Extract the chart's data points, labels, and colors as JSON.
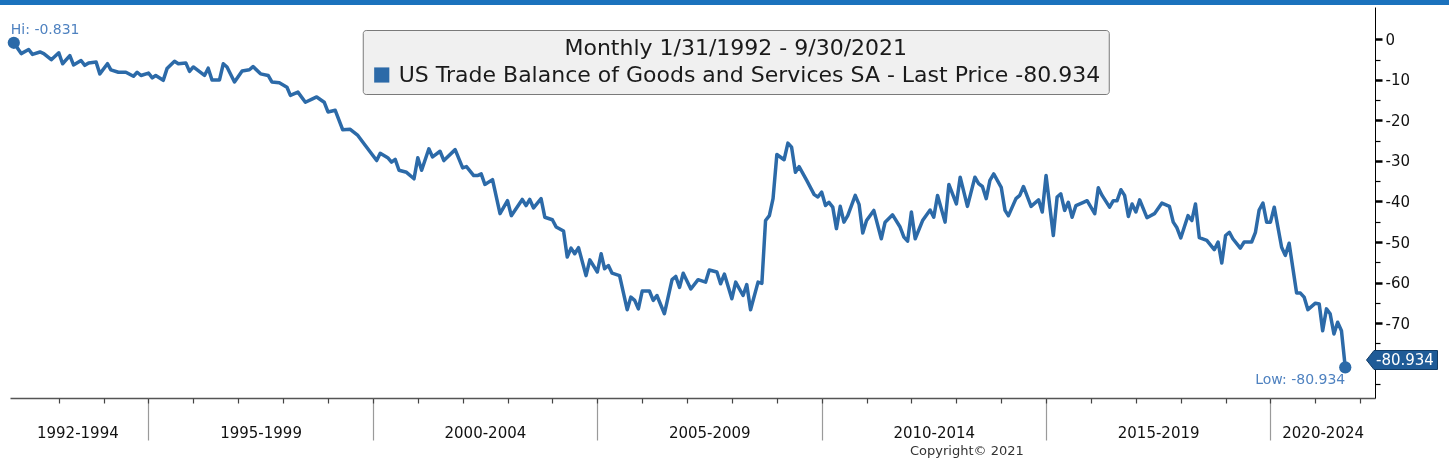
{
  "chart_data": {
    "type": "line",
    "legend_title": "Monthly 1/31/1992 - 9/30/2021",
    "legend": "top",
    "x": [
      "1992-01",
      "1992-03",
      "1992-05",
      "1992-06",
      "1992-08",
      "1992-09",
      "1992-11",
      "1993-01",
      "1993-02",
      "1993-04",
      "1993-05",
      "1993-07",
      "1993-08",
      "1993-09",
      "1993-11",
      "1993-12",
      "1994-02",
      "1994-03",
      "1994-05",
      "1994-07",
      "1994-09",
      "1994-10",
      "1994-11",
      "1995-01",
      "1995-02",
      "1995-03",
      "1995-05",
      "1995-06",
      "1995-08",
      "1995-09",
      "1995-11",
      "1995-12",
      "1996-01",
      "1996-04",
      "1996-05",
      "1996-06",
      "1996-08",
      "1996-09",
      "1996-10",
      "1996-12",
      "1997-02",
      "1997-04",
      "1997-05",
      "1997-07",
      "1997-09",
      "1997-10",
      "1997-12",
      "1998-02",
      "1998-03",
      "1998-05",
      "1998-07",
      "1998-09",
      "1998-10",
      "1998-12",
      "1999-01",
      "1999-03",
      "1999-05",
      "1999-07",
      "1999-09",
      "1999-11",
      "2000-02",
      "2000-03",
      "2000-05",
      "2000-06",
      "2000-07",
      "2000-08",
      "2000-10",
      "2000-12",
      "2001-01",
      "2001-02",
      "2001-04",
      "2001-05",
      "2001-07",
      "2001-08",
      "2001-11",
      "2002-01",
      "2002-02",
      "2002-04",
      "2002-05",
      "2002-06",
      "2002-07",
      "2002-09",
      "2002-11",
      "2003-01",
      "2003-02",
      "2003-05",
      "2003-06",
      "2003-07",
      "2003-08",
      "2003-10",
      "2003-11",
      "2004-01",
      "2004-02",
      "2004-04",
      "2004-05",
      "2004-06",
      "2004-07",
      "2004-08",
      "2004-10",
      "2004-11",
      "2005-01",
      "2005-02",
      "2005-03",
      "2005-04",
      "2005-05",
      "2005-07",
      "2005-09",
      "2005-10",
      "2005-11",
      "2005-12",
      "2006-01",
      "2006-03",
      "2006-04",
      "2006-05",
      "2006-07",
      "2006-09",
      "2006-10",
      "2006-11",
      "2006-12",
      "2007-02",
      "2007-04",
      "2007-06",
      "2007-07",
      "2007-09",
      "2007-10",
      "2007-11",
      "2008-01",
      "2008-02",
      "2008-04",
      "2008-05",
      "2008-06",
      "2008-08",
      "2008-09",
      "2008-10",
      "2008-11",
      "2008-12",
      "2009-01",
      "2009-03",
      "2009-04",
      "2009-05",
      "2009-06",
      "2009-07",
      "2009-09",
      "2009-11",
      "2009-12",
      "2010-01",
      "2010-02",
      "2010-03",
      "2010-04",
      "2010-05",
      "2010-06",
      "2010-07",
      "2010-08",
      "2010-10",
      "2010-11",
      "2010-12",
      "2011-01",
      "2011-03",
      "2011-05",
      "2011-06",
      "2011-08",
      "2011-10",
      "2011-11",
      "2011-12",
      "2012-01",
      "2012-02",
      "2012-04",
      "2012-06",
      "2012-07",
      "2012-08",
      "2012-10",
      "2012-11",
      "2013-01",
      "2013-02",
      "2013-04",
      "2013-06",
      "2013-07",
      "2013-08",
      "2013-09",
      "2013-10",
      "2013-11",
      "2014-01",
      "2014-02",
      "2014-03",
      "2014-05",
      "2014-06",
      "2014-07",
      "2014-09",
      "2014-11",
      "2014-12",
      "2015-01",
      "2015-03",
      "2015-04",
      "2015-05",
      "2015-06",
      "2015-07",
      "2015-08",
      "2015-09",
      "2015-11",
      "2015-12",
      "2016-02",
      "2016-03",
      "2016-04",
      "2016-06",
      "2016-07",
      "2016-08",
      "2016-09",
      "2016-10",
      "2016-11",
      "2016-12",
      "2017-01",
      "2017-02",
      "2017-04",
      "2017-06",
      "2017-08",
      "2017-10",
      "2017-11",
      "2017-12",
      "2018-01",
      "2018-03",
      "2018-04",
      "2018-05",
      "2018-06",
      "2018-08",
      "2018-10",
      "2018-11",
      "2018-12",
      "2019-01",
      "2019-02",
      "2019-03",
      "2019-05",
      "2019-06",
      "2019-08",
      "2019-09",
      "2019-10",
      "2019-11",
      "2019-12",
      "2020-01",
      "2020-02",
      "2020-04",
      "2020-05",
      "2020-06",
      "2020-08",
      "2020-09",
      "2020-10",
      "2020-11",
      "2021-01",
      "2021-02",
      "2021-03",
      "2021-04",
      "2021-05",
      "2021-06",
      "2021-07",
      "2021-08",
      "2021-09"
    ],
    "series": [
      {
        "name": "US Trade Balance of Goods and Services SA - Last Price -80.934",
        "color": "#2c6aa8",
        "values": [
          -0.831,
          -3.5,
          -2.5,
          -3.7,
          -3.1,
          -3.5,
          -5.0,
          -3.3,
          -6.0,
          -4.0,
          -6.3,
          -5.2,
          -6.4,
          -5.8,
          -5.6,
          -8.5,
          -6.0,
          -7.5,
          -8.1,
          -8.1,
          -9.1,
          -8.1,
          -8.9,
          -8.3,
          -9.5,
          -8.9,
          -10.1,
          -7.2,
          -5.4,
          -6.0,
          -5.8,
          -7.9,
          -6.8,
          -8.9,
          -7.1,
          -10.0,
          -10.0,
          -6.0,
          -6.8,
          -10.5,
          -7.8,
          -7.5,
          -6.7,
          -8.5,
          -8.9,
          -10.5,
          -10.7,
          -11.8,
          -13.8,
          -13.0,
          -15.5,
          -14.6,
          -14.2,
          -15.5,
          -17.9,
          -17.5,
          -22.3,
          -22.2,
          -23.7,
          -26.2,
          -29.9,
          -28.1,
          -29.2,
          -30.3,
          -29.6,
          -32.3,
          -32.8,
          -34.4,
          -29.2,
          -32.3,
          -27.0,
          -29.0,
          -27.6,
          -29.9,
          -27.2,
          -31.7,
          -31.4,
          -33.6,
          -33.6,
          -33.2,
          -35.8,
          -34.6,
          -43.0,
          -39.8,
          -43.5,
          -39.5,
          -41.0,
          -39.5,
          -41.6,
          -39.3,
          -43.9,
          -44.5,
          -46.3,
          -47.3,
          -53.7,
          -51.5,
          -52.9,
          -51.4,
          -58.3,
          -54.4,
          -57.4,
          -52.9,
          -56.6,
          -55.8,
          -57.7,
          -58.3,
          -66.7,
          -63.6,
          -64.4,
          -66.5,
          -62.1,
          -62.1,
          -64.4,
          -63.2,
          -67.7,
          -59.3,
          -58.5,
          -61.2,
          -57.7,
          -61.6,
          -59.3,
          -59.9,
          -56.9,
          -57.4,
          -60.3,
          -57.9,
          -64.0,
          -59.9,
          -63.2,
          -60.5,
          -66.7,
          -59.9,
          -60.2,
          -44.7,
          -43.5,
          -39.3,
          -28.4,
          -29.7,
          -25.6,
          -26.6,
          -32.8,
          -31.4,
          -34.8,
          -38.3,
          -38.9,
          -37.7,
          -41.0,
          -40.2,
          -41.4,
          -46.7,
          -41.2,
          -45.1,
          -43.5,
          -38.5,
          -40.7,
          -47.8,
          -44.7,
          -42.2,
          -49.2,
          -45.1,
          -43.3,
          -46.3,
          -48.8,
          -49.8,
          -42.6,
          -49.2,
          -44.7,
          -42.1,
          -43.9,
          -38.5,
          -45.1,
          -35.8,
          -40.6,
          -34.0,
          -41.2,
          -34.0,
          -35.6,
          -36.3,
          -39.3,
          -34.8,
          -33.2,
          -36.5,
          -42.2,
          -43.5,
          -39.3,
          -38.5,
          -36.3,
          -41.2,
          -39.6,
          -42.6,
          -33.6,
          -48.4,
          -38.9,
          -38.1,
          -42.2,
          -40.2,
          -43.9,
          -41.0,
          -40.2,
          -39.8,
          -43.0,
          -36.6,
          -38.5,
          -41.4,
          -39.8,
          -39.8,
          -37.1,
          -38.5,
          -43.7,
          -40.6,
          -42.6,
          -39.6,
          -44.0,
          -43.0,
          -40.4,
          -41.2,
          -45.1,
          -46.5,
          -49.0,
          -43.5,
          -44.7,
          -40.6,
          -48.9,
          -49.6,
          -51.9,
          -50.0,
          -55.2,
          -48.4,
          -47.6,
          -49.2,
          -51.5,
          -50.0,
          -50.0,
          -47.6,
          -42.1,
          -40.4,
          -45.1,
          -45.1,
          -41.4,
          -51.3,
          -53.3,
          -50.3,
          -62.6,
          -62.6,
          -63.6,
          -66.7,
          -65.1,
          -65.3,
          -71.9,
          -66.5,
          -67.7,
          -72.7,
          -69.8,
          -71.9,
          -80.934
        ]
      },
      {
        "type": "scatter",
        "marker": "circle",
        "color": "#2c6aa8",
        "x": [
          "1992-01",
          "2021-09"
        ],
        "values": [
          -0.831,
          -80.934
        ]
      }
    ],
    "xlim": [
      "1991-12",
      "2022-05"
    ],
    "xticks": [
      {
        "value": "1993-01",
        "label": null
      },
      {
        "value": "1993-06",
        "label": "1992-1994"
      },
      {
        "value": "1994-01",
        "label": null
      },
      {
        "value": "1995-01",
        "label": null
      },
      {
        "value": "1996-01",
        "label": null
      },
      {
        "value": "1997-01",
        "label": null
      },
      {
        "value": "1997-07",
        "label": "1995-1999"
      },
      {
        "value": "1998-01",
        "label": null
      },
      {
        "value": "1999-01",
        "label": null
      },
      {
        "value": "2000-01",
        "label": null
      },
      {
        "value": "2001-01",
        "label": null
      },
      {
        "value": "2002-01",
        "label": null
      },
      {
        "value": "2002-07",
        "label": "2000-2004"
      },
      {
        "value": "2003-01",
        "label": null
      },
      {
        "value": "2004-01",
        "label": null
      },
      {
        "value": "2005-01",
        "label": null
      },
      {
        "value": "2006-01",
        "label": null
      },
      {
        "value": "2007-01",
        "label": null
      },
      {
        "value": "2007-07",
        "label": "2005-2009"
      },
      {
        "value": "2008-01",
        "label": null
      },
      {
        "value": "2009-01",
        "label": null
      },
      {
        "value": "2010-01",
        "label": null
      },
      {
        "value": "2011-01",
        "label": null
      },
      {
        "value": "2012-01",
        "label": null
      },
      {
        "value": "2012-07",
        "label": "2010-2014"
      },
      {
        "value": "2013-01",
        "label": null
      },
      {
        "value": "2014-01",
        "label": null
      },
      {
        "value": "2015-01",
        "label": null
      },
      {
        "value": "2016-01",
        "label": null
      },
      {
        "value": "2017-01",
        "label": null
      },
      {
        "value": "2017-07",
        "label": "2015-2019"
      },
      {
        "value": "2018-01",
        "label": null
      },
      {
        "value": "2019-01",
        "label": null
      },
      {
        "value": "2020-01",
        "label": null
      },
      {
        "value": "2021-01",
        "label": null
      },
      {
        "value": "2021-03",
        "label": "2020-2024"
      },
      {
        "value": "2022-01",
        "label": null
      }
    ],
    "ylim": [
      -88.5,
      8
    ],
    "yticks": [
      {
        "value": -85,
        "label": null
      },
      {
        "value": -75,
        "label": null
      },
      -70,
      {
        "value": -65,
        "label": null
      },
      -60,
      {
        "value": -55,
        "label": null
      },
      -50,
      {
        "value": -45,
        "label": null
      },
      -40,
      {
        "value": -35,
        "label": null
      },
      -30,
      {
        "value": -25,
        "label": null
      },
      -20,
      {
        "value": -15,
        "label": null
      },
      -10,
      {
        "value": -5,
        "label": null
      },
      0
    ],
    "annotations": [
      {
        "text": "Hi: -0.831",
        "x": "1992-01",
        "y": -0.831
      },
      {
        "text": "Low: -80.934",
        "x": "2021-09",
        "y": -80.934
      },
      "-80.934",
      "Copyright© 2021"
    ]
  }
}
